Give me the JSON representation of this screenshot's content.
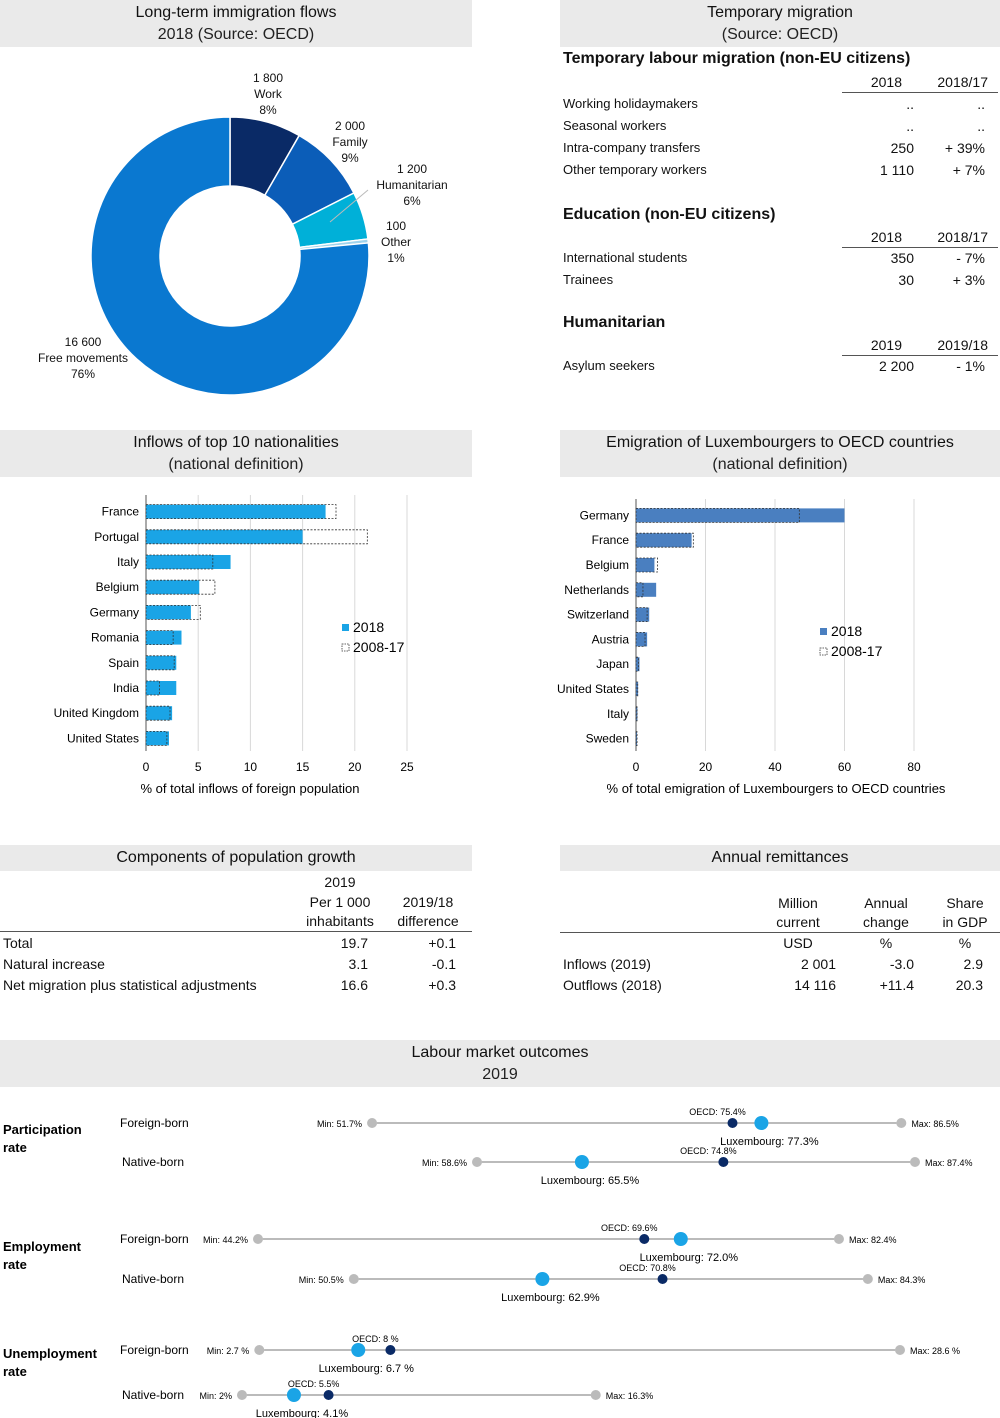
{
  "colors": {
    "accent": "#1aa4e6",
    "dark_blue": "#0a2a66",
    "mid_blue": "#0b5db8",
    "main_blue": "#0a78d0",
    "cyan": "#00b0d8",
    "steel_blue": "#4a7fc0",
    "grey_dot": "#bbbbbb"
  },
  "panels": {
    "immigration": {
      "title": "Long-term immigration flows",
      "subtitle": "2018 (Source: OECD)"
    },
    "temporary": {
      "title": "Temporary migration",
      "subtitle": "(Source: OECD)"
    },
    "nationalities": {
      "title": "Inflows of top 10 nationalities",
      "subtitle": "(national definition)"
    },
    "emigration": {
      "title": "Emigration of Luxembourgers to OECD countries",
      "subtitle": "(national definition)"
    },
    "population": {
      "title": "Components of population growth"
    },
    "remittances": {
      "title": "Annual remittances"
    },
    "labour": {
      "title": "Labour market outcomes",
      "subtitle": "2019"
    }
  },
  "temporary_tables": {
    "labour": {
      "heading": "Temporary labour migration (non-EU citizens)",
      "col1": "2018",
      "col2": "2018/17",
      "rows": [
        {
          "label": "Working holidaymakers",
          "v1": "..",
          "v2": ".."
        },
        {
          "label": "Seasonal workers",
          "v1": "..",
          "v2": ".."
        },
        {
          "label": "Intra-company transfers",
          "v1": "250",
          "v2": "+ 39%"
        },
        {
          "label": "Other temporary workers",
          "v1": "1 110",
          "v2": "+ 7%"
        }
      ]
    },
    "education": {
      "heading": "Education (non-EU citizens)",
      "col1": "2018",
      "col2": "2018/17",
      "rows": [
        {
          "label": "International students",
          "v1": "350",
          "v2": "- 7%"
        },
        {
          "label": "Trainees",
          "v1": "30",
          "v2": "+ 3%"
        }
      ]
    },
    "humanitarian": {
      "heading": "Humanitarian",
      "col1": "2019",
      "col2": "2019/18",
      "rows": [
        {
          "label": "Asylum seekers",
          "v1": "2 200",
          "v2": "- 1%"
        }
      ]
    }
  },
  "population_table": {
    "head": {
      "year": "2019",
      "c1a": "Per 1 000",
      "c1b": "inhabitants",
      "c2a": "2019/18",
      "c2b": "difference"
    },
    "rows": [
      {
        "label": "Total",
        "v1": "19.7",
        "v2": "+0.1"
      },
      {
        "label": "Natural increase",
        "v1": "3.1",
        "v2": "-0.1"
      },
      {
        "label": "Net migration plus statistical adjustments",
        "v1": "16.6",
        "v2": "+0.3"
      }
    ]
  },
  "remittances_table": {
    "head": {
      "c1a": "Million",
      "c1b": "current",
      "c1c": "USD",
      "c2a": "Annual",
      "c2b": "change",
      "c2c": "%",
      "c3a": "Share",
      "c3b": "in GDP",
      "c3c": "%"
    },
    "rows": [
      {
        "label": "Inflows (2019)",
        "v1": "2 001",
        "v2": "-3.0",
        "v3": "2.9"
      },
      {
        "label": "Outflows (2018)",
        "v1": "14 116",
        "v2": "+11.4",
        "v3": "20.3"
      }
    ]
  },
  "chart_data": [
    {
      "type": "pie",
      "title": "Long-term immigration flows",
      "subtitle": "2018 (Source: OECD)",
      "slices": [
        {
          "name": "Work",
          "value": 1800,
          "pct": 8,
          "value_label": "1 800",
          "pct_label": "8%",
          "color": "#0a2a66"
        },
        {
          "name": "Family",
          "value": 2000,
          "pct": 9,
          "value_label": "2 000",
          "pct_label": "9%",
          "color": "#0b5db8"
        },
        {
          "name": "Humanitarian",
          "value": 1200,
          "pct": 6,
          "value_label": "1 200",
          "pct_label": "6%",
          "color": "#00b0d8"
        },
        {
          "name": "Other",
          "value": 100,
          "pct": 1,
          "value_label": "100",
          "pct_label": "1%",
          "color": "#9fd3ec"
        },
        {
          "name": "Free movements",
          "value": 16600,
          "pct": 76,
          "value_label": "16 600",
          "pct_label": "76%",
          "color": "#0a78d0"
        }
      ]
    },
    {
      "type": "bar",
      "orientation": "horizontal",
      "title": "Inflows of top 10 nationalities",
      "subtitle": "(national definition)",
      "xlabel": "% of total inflows of foreign population",
      "xlim": [
        0,
        25
      ],
      "xticks": [
        0,
        5,
        10,
        15,
        20,
        25
      ],
      "categories": [
        "France",
        "Portugal",
        "Italy",
        "Belgium",
        "Germany",
        "Romania",
        "Spain",
        "India",
        "United Kingdom",
        "United States"
      ],
      "series": [
        {
          "name": "2018",
          "values": [
            17.2,
            15.0,
            8.1,
            5.1,
            4.3,
            3.4,
            2.9,
            2.9,
            2.5,
            2.2
          ],
          "color": "#1aa4e6"
        },
        {
          "name": "2008-17",
          "values": [
            18.2,
            21.2,
            6.4,
            6.6,
            5.2,
            2.6,
            2.7,
            1.3,
            2.3,
            2.0
          ],
          "style": "dashed-outline"
        }
      ],
      "legend": "right"
    },
    {
      "type": "bar",
      "orientation": "horizontal",
      "title": "Emigration of Luxembourgers to OECD countries",
      "subtitle": "(national definition)",
      "xlabel": "% of total emigration of Luxembourgers to OECD countries",
      "xlim": [
        0,
        80
      ],
      "xticks": [
        0,
        20,
        40,
        60,
        80
      ],
      "categories": [
        "Germany",
        "France",
        "Belgium",
        "Netherlands",
        "Switzerland",
        "Austria",
        "Japan",
        "United States",
        "Italy",
        "Sweden"
      ],
      "series": [
        {
          "name": "2018",
          "values": [
            60.0,
            16.0,
            5.3,
            5.8,
            3.8,
            3.2,
            1.0,
            0.6,
            0.4,
            0.3
          ],
          "color": "#4a7fc0"
        },
        {
          "name": "2008-17",
          "values": [
            47.0,
            16.5,
            6.2,
            2.0,
            3.2,
            2.6,
            0.7,
            0.5,
            0.3,
            0.3
          ],
          "style": "dashed-outline"
        }
      ],
      "legend": "right"
    },
    {
      "type": "dot-range",
      "title": "Labour market outcomes",
      "subtitle": "2019",
      "groups": [
        {
          "label": "Participation rate",
          "rows": [
            {
              "name": "Foreign-born",
              "min": 51.7,
              "max": 86.5,
              "oecd": 75.4,
              "lux": 77.3,
              "min_label": "Min: 51.7%",
              "max_label": "Max: 86.5%",
              "oecd_label": "OECD: 75.4%",
              "lux_label": "Luxembourg: 77.3%"
            },
            {
              "name": "Native-born",
              "min": 58.6,
              "max": 87.4,
              "oecd": 74.8,
              "lux": 65.5,
              "min_label": "Min: 58.6%",
              "max_label": "Max: 87.4%",
              "oecd_label": "OECD: 74.8%",
              "lux_label": "Luxembourg: 65.5%"
            }
          ]
        },
        {
          "label": "Employment rate",
          "rows": [
            {
              "name": "Foreign-born",
              "min": 44.2,
              "max": 82.4,
              "oecd": 69.6,
              "lux": 72.0,
              "min_label": "Min: 44.2%",
              "max_label": "Max: 82.4%",
              "oecd_label": "OECD: 69.6%",
              "lux_label": "Luxembourg: 72.0%"
            },
            {
              "name": "Native-born",
              "min": 50.5,
              "max": 84.3,
              "oecd": 70.8,
              "lux": 62.9,
              "min_label": "Min: 50.5%",
              "max_label": "Max: 84.3%",
              "oecd_label": "OECD: 70.8%",
              "lux_label": "Luxembourg: 62.9%"
            }
          ]
        },
        {
          "label": "Unemployment rate",
          "rows": [
            {
              "name": "Foreign-born",
              "min": 2.7,
              "max": 28.6,
              "oecd": 8.0,
              "lux": 6.7,
              "min_label": "Min: 2.7 %",
              "max_label": "Max: 28.6 %",
              "oecd_label": "OECD: 8 %",
              "lux_label": "Luxembourg: 6.7 %"
            },
            {
              "name": "Native-born",
              "min": 2.0,
              "max": 16.3,
              "oecd": 5.5,
              "lux": 4.1,
              "min_label": "Min: 2%",
              "max_label": "Max: 16.3%",
              "oecd_label": "OECD: 5.5%",
              "lux_label": "Luxembourg: 4.1%"
            }
          ]
        }
      ]
    }
  ]
}
